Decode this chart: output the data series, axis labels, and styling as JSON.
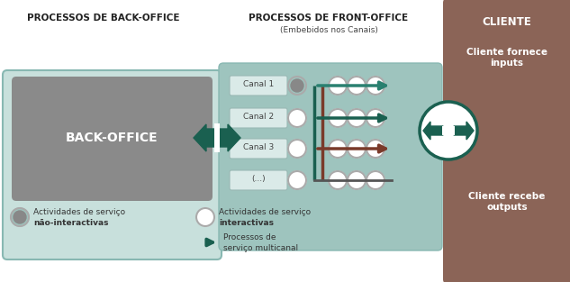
{
  "bg_color": "#ffffff",
  "back_office_header": "PROCESSOS DE BACK-OFFICE",
  "front_office_header": "PROCESSOS DE FRONT-OFFICE",
  "front_office_subheader": "(Embebidos nos Canais)",
  "cliente_header": "CLIENTE",
  "back_office_label": "BACK-OFFICE",
  "back_office_bg_color": "#8a8a8a",
  "back_office_outer_color": "#a0bfbc",
  "front_office_bg_color": "#9ec4be",
  "cliente_bg_color": "#8b6457",
  "canal_labels": [
    "Canal 1",
    "Canal 2",
    "Canal 3",
    "(...)"
  ],
  "teal_dark": "#1a6050",
  "teal_mid": "#2a8070",
  "brown_color": "#7a3a2a",
  "gray_circle": "#aaaaaa",
  "canal_box_color": "#d8ecea",
  "legend1_text1": "Actividades de serviço",
  "legend1_bold": "não-interactivas",
  "legend2_text1": "Actividades de serviço",
  "legend2_bold": "interactivas",
  "legend3_text1": "Processos de",
  "legend3_text2": "serviço multicanal",
  "cliente_text1": "Cliente fornece",
  "cliente_text2": "inputs",
  "cliente_text3": "Cliente recebe",
  "cliente_text4": "outputs"
}
